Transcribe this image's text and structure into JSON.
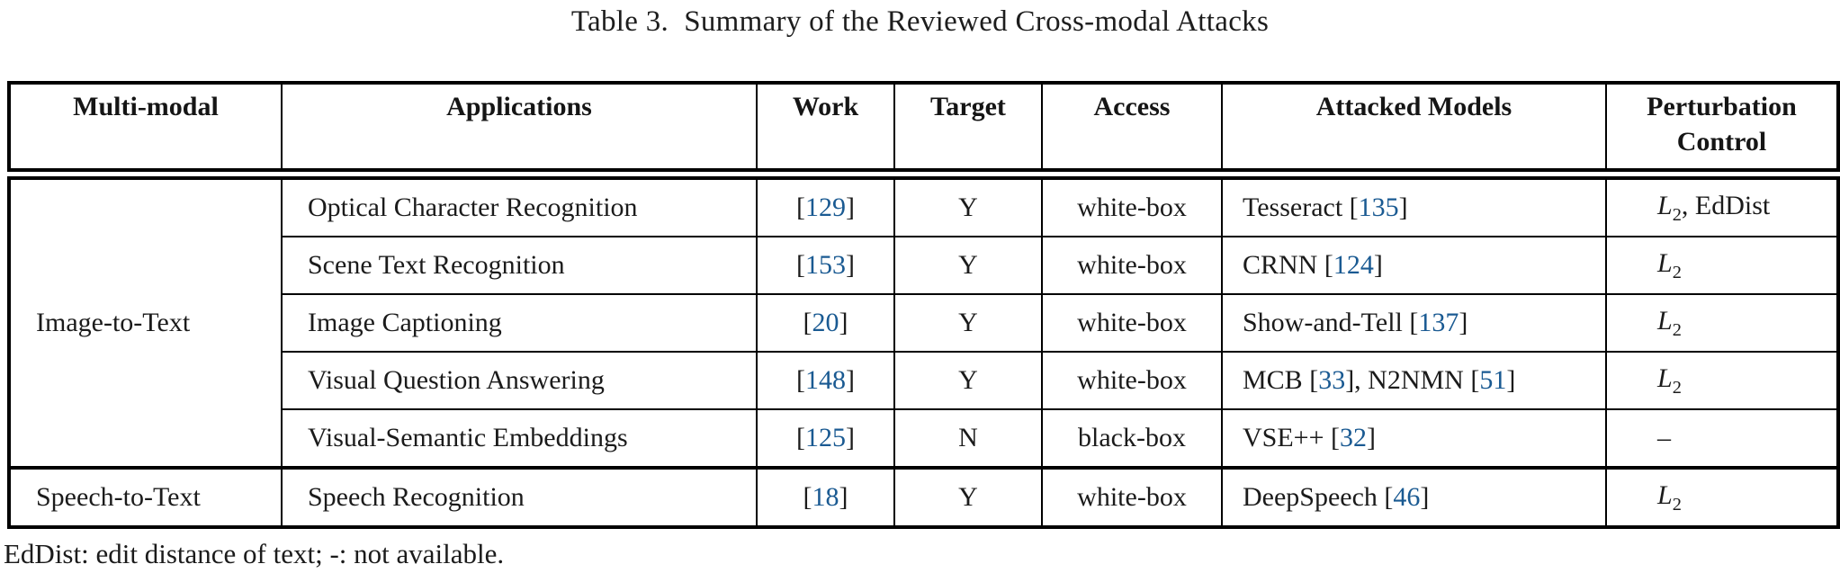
{
  "title": "Table 3.  Summary of the Reviewed Cross-modal Attacks",
  "colors": {
    "citation_blue": "#1a5a92",
    "text": "#1b1b1b",
    "border": "#000000",
    "background": "#ffffff"
  },
  "table": {
    "headers": {
      "multi_modal": "Multi-modal",
      "applications": "Applications",
      "work": "Work",
      "target": "Target",
      "access": "Access",
      "attacked_models": "Attacked Models",
      "perturbation_control": "Perturbation Control"
    },
    "groups": {
      "image_to_text": "Image-to-Text",
      "speech_to_text": "Speech-to-Text"
    },
    "rows": [
      {
        "application": "Optical Character Recognition",
        "work": "[129]",
        "target": "Y",
        "access": "white-box",
        "models": "Tesseract [135]",
        "perturbation": "L_2, EdDist"
      },
      {
        "application": "Scene Text Recognition",
        "work": "[153]",
        "target": "Y",
        "access": "white-box",
        "models": "CRNN [124]",
        "perturbation": "L_2"
      },
      {
        "application": "Image Captioning",
        "work": "[20]",
        "target": "Y",
        "access": "white-box",
        "models": "Show-and-Tell [137]",
        "perturbation": "L_2"
      },
      {
        "application": "Visual Question Answering",
        "work": "[148]",
        "target": "Y",
        "access": "white-box",
        "models": "MCB [33], N2NMN [51]",
        "perturbation": "L_2"
      },
      {
        "application": "Visual-Semantic Embeddings",
        "work": "[125]",
        "target": "N",
        "access": "black-box",
        "models": "VSE++ [32]",
        "perturbation": "–"
      },
      {
        "application": "Speech Recognition",
        "work": "[18]",
        "target": "Y",
        "access": "white-box",
        "models": "DeepSpeech [46]",
        "perturbation": "L_2"
      }
    ]
  },
  "footnote": "EdDist: edit distance of text; -: not available."
}
